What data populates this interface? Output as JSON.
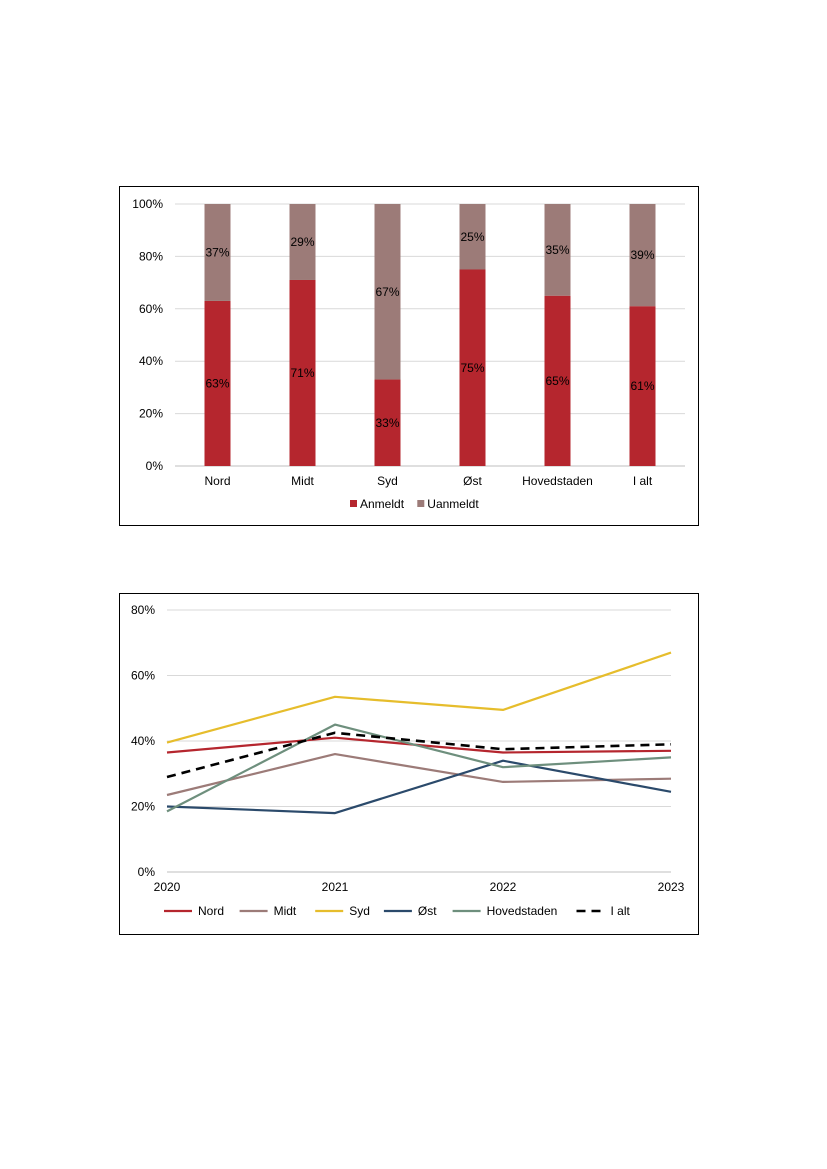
{
  "chart_data": [
    {
      "type": "bar",
      "stacked": true,
      "categories": [
        "Nord",
        "Midt",
        "Syd",
        "Øst",
        "Hovedstaden",
        "I alt"
      ],
      "series": [
        {
          "name": "Anmeldt",
          "values": [
            63,
            71,
            33,
            75,
            65,
            61
          ],
          "labels": [
            "63%",
            "71%",
            "33%",
            "75%",
            "65%",
            "61%"
          ],
          "color": "#b5262e"
        },
        {
          "name": "Uanmeldt",
          "values": [
            37,
            29,
            67,
            25,
            35,
            39
          ],
          "labels": [
            "37%",
            "29%",
            "67%",
            "25%",
            "35%",
            "39%"
          ],
          "color": "#9c7b78"
        }
      ],
      "ylim": [
        0,
        100
      ],
      "yticks": [
        "0%",
        "20%",
        "40%",
        "60%",
        "80%",
        "100%"
      ],
      "grid": true,
      "legend": "bottom"
    },
    {
      "type": "line",
      "x": [
        "2020",
        "2021",
        "2022",
        "2023"
      ],
      "series": [
        {
          "name": "Nord",
          "values": [
            36.5,
            41,
            36.5,
            37
          ],
          "color": "#b5262e",
          "dash": false
        },
        {
          "name": "Midt",
          "values": [
            23.5,
            36,
            27.5,
            28.5
          ],
          "color": "#9c7b78",
          "dash": false
        },
        {
          "name": "Syd",
          "values": [
            39.5,
            53.5,
            49.5,
            67
          ],
          "color": "#e6bd2c",
          "dash": false
        },
        {
          "name": "Øst",
          "values": [
            20,
            18,
            34,
            24.5
          ],
          "color": "#2b4a6b",
          "dash": false
        },
        {
          "name": "Hovedstaden",
          "values": [
            18.5,
            45,
            32,
            35
          ],
          "color": "#6e8f7d",
          "dash": false
        },
        {
          "name": "I alt",
          "values": [
            29,
            42.5,
            37.5,
            39
          ],
          "color": "#000000",
          "dash": true
        }
      ],
      "ylim": [
        0,
        80
      ],
      "yticks": [
        "0%",
        "20%",
        "40%",
        "60%",
        "80%"
      ],
      "grid": true,
      "legend": "bottom"
    }
  ]
}
